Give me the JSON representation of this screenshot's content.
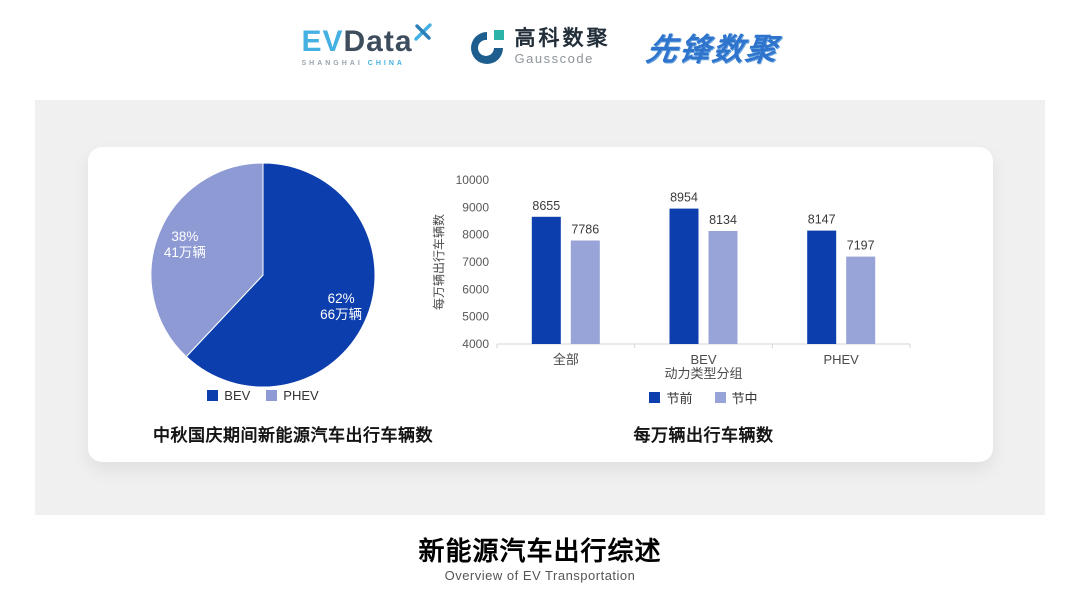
{
  "header": {
    "evdata": {
      "ev": "EV",
      "data": "Data",
      "sub1": "SHANGHAI",
      "sub2": "CHINA"
    },
    "gausscode": {
      "cn": "高科数聚",
      "en": "Gausscode"
    },
    "xianfeng": "先锋数聚"
  },
  "footer": {
    "title": "新能源汽车出行综述",
    "subtitle": "Overview of EV Transportation"
  },
  "chart_data": [
    {
      "type": "pie",
      "title": "中秋国庆期间新能源汽车出行车辆数",
      "slices": [
        {
          "label": "BEV",
          "percent": 62,
          "value_label": "66万辆",
          "color": "#0d3ead"
        },
        {
          "label": "PHEV",
          "percent": 38,
          "value_label": "41万辆",
          "color": "#8d9ad3"
        }
      ],
      "start_angle": "12-oclock",
      "direction": "clockwise",
      "label_text_color": "#ffffff",
      "legend_position": "bottom"
    },
    {
      "type": "bar",
      "title": "每万辆出行车辆数",
      "categories": [
        "全部",
        "BEV",
        "PHEV"
      ],
      "series": [
        {
          "name": "节前",
          "color": "#0d3ead",
          "values": [
            8655,
            8954,
            8147
          ]
        },
        {
          "name": "节中",
          "color": "#98a3d8",
          "values": [
            7786,
            8134,
            7197
          ]
        }
      ],
      "xlabel": "动力类型分组",
      "ylabel": "每万辆出行车辆数",
      "ylim": [
        4000,
        10000
      ],
      "ytick_step": 1000,
      "grid": false,
      "legend_position": "bottom"
    }
  ]
}
